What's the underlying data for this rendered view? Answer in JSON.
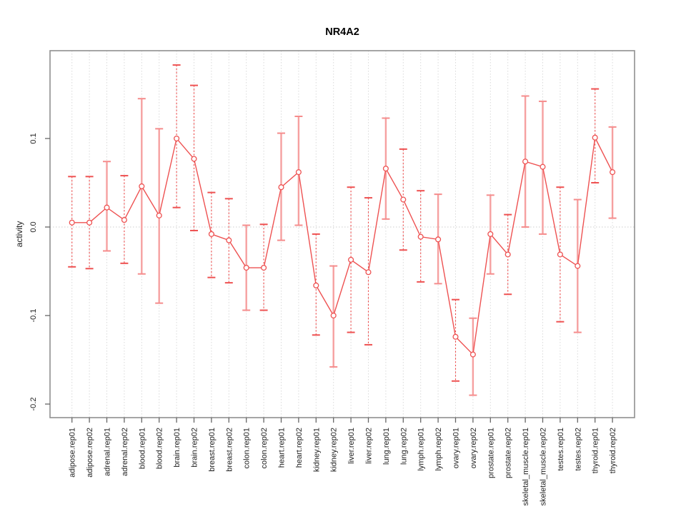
{
  "chart_data": {
    "type": "line",
    "subtype": "points-with-error-bars",
    "title": "NR4A2",
    "ylabel": "activity",
    "xlabel": "",
    "legend": "none",
    "grid": "vertical-dotted-per-category",
    "zero_line": true,
    "point_marker": "open-circle",
    "yticks": [
      0.1,
      0.0,
      -0.1,
      -0.2
    ],
    "ytick_labels": [
      "0.1",
      "0.0",
      "-0.1",
      "-0.2"
    ],
    "ylim": [
      -0.215,
      0.199
    ],
    "categories": [
      "adipose.rep01",
      "adipose.rep02",
      "adrenal.rep01",
      "adrenal.rep02",
      "blood.rep01",
      "blood.rep02",
      "brain.rep01",
      "brain.rep02",
      "breast.rep01",
      "breast.rep02",
      "colon.rep01",
      "colon.rep02",
      "heart.rep01",
      "heart.rep02",
      "kidney.rep01",
      "kidney.rep02",
      "liver.rep01",
      "liver.rep02",
      "lung.rep01",
      "lung.rep02",
      "lymph.rep01",
      "lymph.rep02",
      "ovary.rep01",
      "ovary.rep02",
      "prostate.rep01",
      "prostate.rep02",
      "skeletal_muscle.rep01",
      "skeletal_muscle.rep02",
      "testes.rep01",
      "testes.rep02",
      "thyroid.rep01",
      "thyroid.rep02"
    ],
    "series": [
      {
        "name": "NR4A2 activity",
        "values": [
          0.005,
          0.005,
          0.022,
          0.008,
          0.046,
          0.013,
          0.1,
          0.077,
          -0.008,
          -0.015,
          -0.046,
          -0.046,
          0.045,
          0.062,
          -0.066,
          -0.1,
          -0.037,
          -0.051,
          0.066,
          0.031,
          -0.011,
          -0.014,
          -0.124,
          -0.144,
          -0.008,
          -0.031,
          0.074,
          0.068,
          -0.031,
          -0.044,
          0.101,
          0.062
        ],
        "ci_high": [
          0.057,
          0.057,
          0.074,
          0.058,
          0.145,
          0.111,
          0.183,
          0.16,
          0.039,
          0.032,
          0.002,
          0.003,
          0.106,
          0.125,
          -0.008,
          -0.044,
          0.045,
          0.033,
          0.123,
          0.088,
          0.041,
          0.037,
          -0.082,
          -0.103,
          0.036,
          0.014,
          0.148,
          0.142,
          0.045,
          0.031,
          0.156,
          0.113
        ],
        "ci_low": [
          -0.045,
          -0.047,
          -0.027,
          -0.041,
          -0.053,
          -0.086,
          0.022,
          -0.004,
          -0.057,
          -0.063,
          -0.094,
          -0.094,
          -0.015,
          0.002,
          -0.122,
          -0.158,
          -0.119,
          -0.133,
          0.009,
          -0.026,
          -0.062,
          -0.064,
          -0.174,
          -0.19,
          -0.053,
          -0.076,
          0.0,
          -0.008,
          -0.107,
          -0.119,
          0.05,
          0.01
        ],
        "bar_styles": [
          "dashed",
          "dashed",
          "solid",
          "dashed",
          "solid",
          "solid",
          "dashed",
          "dashed",
          "dashed",
          "dashed",
          "solid",
          "dashed",
          "solid",
          "solid",
          "dashed",
          "solid",
          "dashed",
          "dashed",
          "solid",
          "dashed",
          "dashed",
          "solid",
          "dashed",
          "solid",
          "solid",
          "dashed",
          "solid",
          "solid",
          "dashed",
          "solid",
          "dashed",
          "solid"
        ]
      }
    ],
    "colors": {
      "point": "#ee5252",
      "line": "#ee5252",
      "bar_dashed": "#ee4b4b",
      "bar_solid": "#f6a0a0",
      "cap_dashed": "#ee5252",
      "cap_solid": "#f58c8c",
      "grid": "#d9d9d9",
      "zero_line": "#cccccc",
      "box": "#8f8f8f",
      "tick": "#666666",
      "text": "#222222",
      "title": "#000000"
    }
  }
}
